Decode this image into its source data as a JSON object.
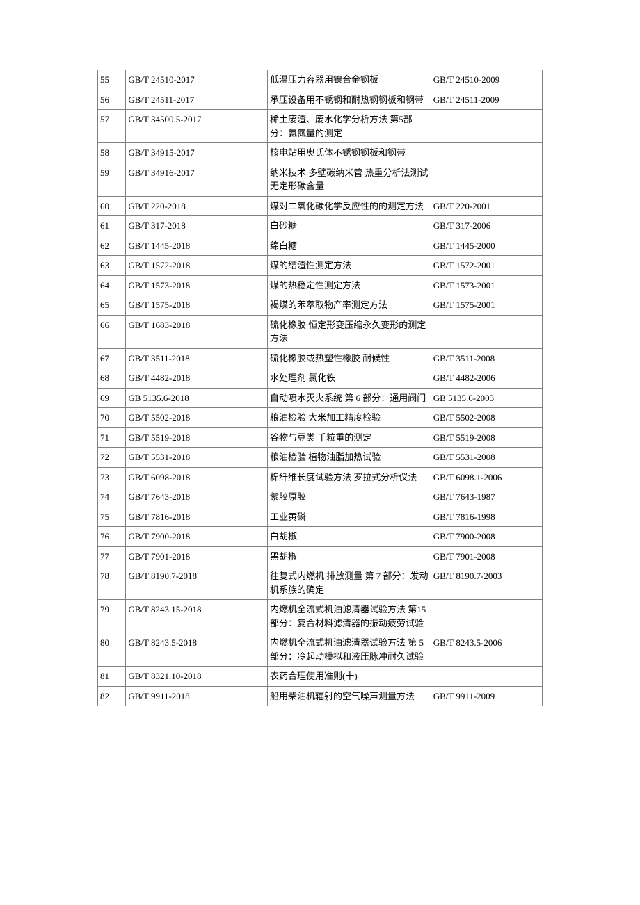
{
  "table": {
    "rows": [
      {
        "idx": "55",
        "std": "GB/T 24510-2017",
        "name": "低温压力容器用镍合金钢板",
        "repl": "GB/T 24510-2009"
      },
      {
        "idx": "56",
        "std": "GB/T 24511-2017",
        "name": "承压设备用不锈钢和耐热钢钢板和钢带",
        "repl": "GB/T 24511-2009"
      },
      {
        "idx": "57",
        "std": "GB/T 34500.5-2017",
        "name": "稀土废渣、废水化学分析方法 第5部分：氨氮量的测定",
        "repl": ""
      },
      {
        "idx": "58",
        "std": "GB/T 34915-2017",
        "name": "核电站用奥氏体不锈钢钢板和钢带",
        "repl": ""
      },
      {
        "idx": "59",
        "std": "GB/T 34916-2017",
        "name": "纳米技术 多壁碳纳米管 热重分析法测试无定形碳含量",
        "repl": ""
      },
      {
        "idx": "60",
        "std": "GB/T 220-2018",
        "name": "煤对二氧化碳化学反应性的的测定方法",
        "repl": "GB/T 220-2001"
      },
      {
        "idx": "61",
        "std": "GB/T 317-2018",
        "name": "白砂糖",
        "repl": "GB/T 317-2006"
      },
      {
        "idx": "62",
        "std": "GB/T 1445-2018",
        "name": "绵白糖",
        "repl": "GB/T 1445-2000"
      },
      {
        "idx": "63",
        "std": "GB/T 1572-2018",
        "name": "煤的结渣性测定方法",
        "repl": "GB/T 1572-2001"
      },
      {
        "idx": "64",
        "std": "GB/T 1573-2018",
        "name": "煤的热稳定性测定方法",
        "repl": "GB/T 1573-2001"
      },
      {
        "idx": "65",
        "std": "GB/T 1575-2018",
        "name": "褐煤的苯萃取物产率测定方法",
        "repl": "GB/T 1575-2001"
      },
      {
        "idx": "66",
        "std": "GB/T 1683-2018",
        "name": "硫化橡胶 恒定形变压缩永久变形的测定方法",
        "repl": ""
      },
      {
        "idx": "67",
        "std": "GB/T 3511-2018",
        "name": "硫化橡胶或热塑性橡胶 耐候性",
        "repl": "GB/T 3511-2008"
      },
      {
        "idx": "68",
        "std": "GB/T 4482-2018",
        "name": "水处理剂 氯化铁",
        "repl": "GB/T 4482-2006"
      },
      {
        "idx": "69",
        "std": "GB 5135.6-2018",
        "name": "自动喷水灭火系统 第 6 部分：通用阀门",
        "repl": "GB 5135.6-2003"
      },
      {
        "idx": "70",
        "std": "GB/T 5502-2018",
        "name": "粮油检验 大米加工精度检验",
        "repl": "GB/T 5502-2008"
      },
      {
        "idx": "71",
        "std": "GB/T 5519-2018",
        "name": "谷物与豆类 千粒重的测定",
        "repl": "GB/T 5519-2008"
      },
      {
        "idx": "72",
        "std": "GB/T 5531-2018",
        "name": "粮油检验 植物油脂加热试验",
        "repl": "GB/T 5531-2008"
      },
      {
        "idx": "73",
        "std": "GB/T 6098-2018",
        "name": "棉纤维长度试验方法 罗拉式分析仪法",
        "repl": "GB/T 6098.1-2006"
      },
      {
        "idx": "74",
        "std": "GB/T 7643-2018",
        "name": "紫胶原胶",
        "repl": "GB/T 7643-1987"
      },
      {
        "idx": "75",
        "std": "GB/T 7816-2018",
        "name": "工业黄磷",
        "repl": "GB/T 7816-1998"
      },
      {
        "idx": "76",
        "std": "GB/T 7900-2018",
        "name": "白胡椒",
        "repl": "GB/T 7900-2008"
      },
      {
        "idx": "77",
        "std": "GB/T 7901-2018",
        "name": "黑胡椒",
        "repl": "GB/T 7901-2008"
      },
      {
        "idx": "78",
        "std": "GB/T 8190.7-2018",
        "name": "往复式内燃机 排放测量 第 7 部分：发动机系族的确定",
        "repl": "GB/T 8190.7-2003"
      },
      {
        "idx": "79",
        "std": "GB/T 8243.15-2018",
        "name": "内燃机全流式机油滤清器试验方法 第15部分：复合材料滤清器的振动疲劳试验",
        "repl": ""
      },
      {
        "idx": "80",
        "std": "GB/T 8243.5-2018",
        "name": "内燃机全流式机油滤清器试验方法 第 5 部分：冷起动模拟和液压脉冲耐久试验",
        "repl": "GB/T 8243.5-2006"
      },
      {
        "idx": "81",
        "std": "GB/T 8321.10-2018",
        "name": "农药合理使用准则(十)",
        "repl": ""
      },
      {
        "idx": "82",
        "std": "GB/T 9911-2018",
        "name": "船用柴油机辐射的空气噪声测量方法",
        "repl": "GB/T 9911-2009"
      }
    ]
  }
}
